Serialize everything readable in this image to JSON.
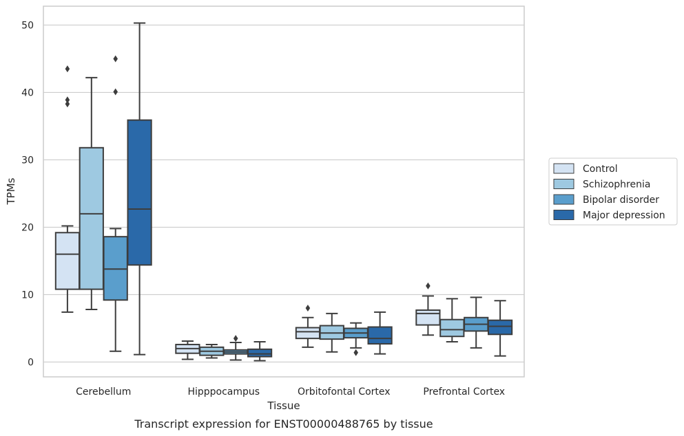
{
  "chart_data": {
    "type": "box",
    "caption": "Transcript expression for ENST00000488765 by tissue",
    "xlabel": "Tissue",
    "ylabel": "TPMs",
    "ylim": [
      -2.2,
      52.8
    ],
    "yticks": [
      0,
      10,
      20,
      30,
      40,
      50
    ],
    "grid": "horizontal",
    "legend_position": "right",
    "categories": [
      "Cerebellum",
      "Hipppocampus",
      "Orbitofontal Cortex",
      "Prefrontal Cortex"
    ],
    "series": [
      {
        "name": "Control",
        "color": "#d4e3f3",
        "boxes": [
          {
            "whisker_low": 7.4,
            "q1": 10.8,
            "median": 16.0,
            "q3": 19.2,
            "whisker_high": 20.2,
            "outliers": [
              38.3,
              38.9,
              43.5
            ]
          },
          {
            "whisker_low": 0.4,
            "q1": 1.3,
            "median": 2.0,
            "q3": 2.6,
            "whisker_high": 3.1,
            "outliers": []
          },
          {
            "whisker_low": 2.2,
            "q1": 3.5,
            "median": 4.5,
            "q3": 5.1,
            "whisker_high": 6.6,
            "outliers": [
              8.0
            ]
          },
          {
            "whisker_low": 4.0,
            "q1": 5.5,
            "median": 7.2,
            "q3": 7.7,
            "whisker_high": 9.8,
            "outliers": [
              11.3
            ]
          }
        ]
      },
      {
        "name": "Schizophrenia",
        "color": "#9ec9e1",
        "boxes": [
          {
            "whisker_low": 7.8,
            "q1": 10.8,
            "median": 22.0,
            "q3": 31.8,
            "whisker_high": 42.2,
            "outliers": []
          },
          {
            "whisker_low": 0.6,
            "q1": 1.0,
            "median": 1.6,
            "q3": 2.2,
            "whisker_high": 2.6,
            "outliers": []
          },
          {
            "whisker_low": 1.5,
            "q1": 3.4,
            "median": 4.3,
            "q3": 5.4,
            "whisker_high": 7.2,
            "outliers": []
          },
          {
            "whisker_low": 3.0,
            "q1": 3.8,
            "median": 4.8,
            "q3": 6.3,
            "whisker_high": 9.4,
            "outliers": []
          }
        ]
      },
      {
        "name": "Bipolar disorder",
        "color": "#5a9ecc",
        "boxes": [
          {
            "whisker_low": 1.6,
            "q1": 9.2,
            "median": 13.8,
            "q3": 18.6,
            "whisker_high": 19.8,
            "outliers": [
              40.1,
              45.0
            ]
          },
          {
            "whisker_low": 0.3,
            "q1": 1.2,
            "median": 1.5,
            "q3": 1.8,
            "whisker_high": 2.9,
            "outliers": [
              3.5
            ]
          },
          {
            "whisker_low": 2.1,
            "q1": 3.6,
            "median": 4.3,
            "q3": 5.0,
            "whisker_high": 5.8,
            "outliers": [
              1.4
            ]
          },
          {
            "whisker_low": 2.1,
            "q1": 4.6,
            "median": 5.6,
            "q3": 6.6,
            "whisker_high": 9.6,
            "outliers": []
          }
        ]
      },
      {
        "name": "Major depression",
        "color": "#2a69a9",
        "boxes": [
          {
            "whisker_low": 1.1,
            "q1": 14.4,
            "median": 22.7,
            "q3": 35.9,
            "whisker_high": 50.3,
            "outliers": []
          },
          {
            "whisker_low": 0.2,
            "q1": 0.8,
            "median": 1.2,
            "q3": 1.9,
            "whisker_high": 3.0,
            "outliers": []
          },
          {
            "whisker_low": 1.2,
            "q1": 2.7,
            "median": 3.5,
            "q3": 5.2,
            "whisker_high": 7.4,
            "outliers": []
          },
          {
            "whisker_low": 0.9,
            "q1": 4.1,
            "median": 5.3,
            "q3": 6.2,
            "whisker_high": 9.1,
            "outliers": []
          }
        ]
      }
    ]
  }
}
